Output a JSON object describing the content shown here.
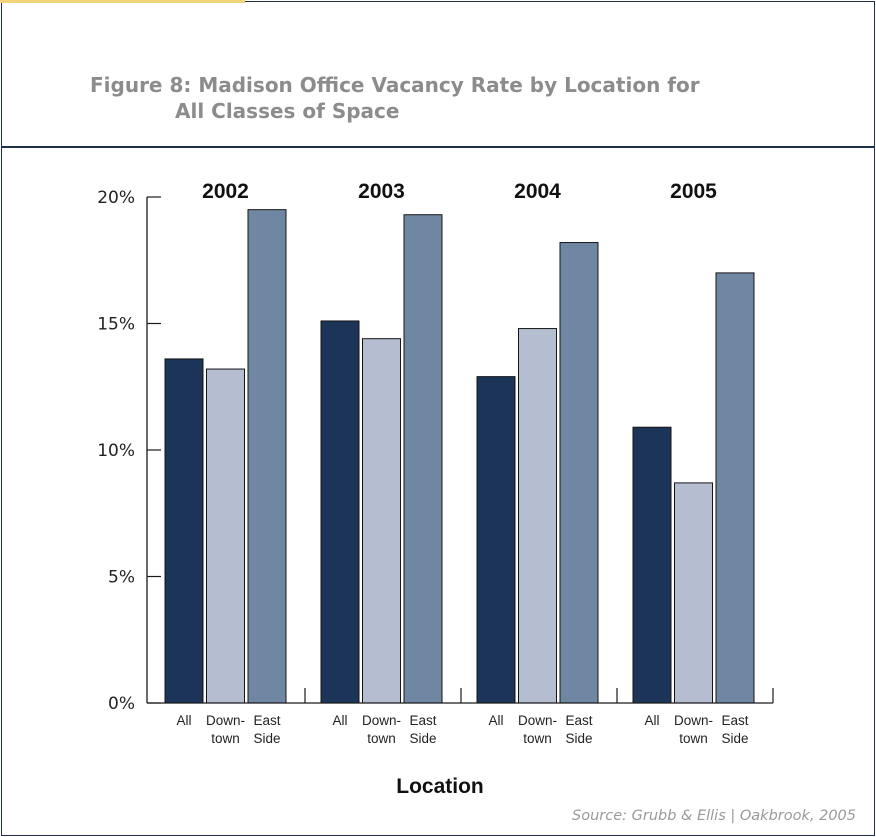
{
  "colors": {
    "frame": "#1f2f4c",
    "accent": "#f2d57a",
    "title_text": "#8c8c8c",
    "source_text": "#9a9a9a",
    "axis": "#1a1a1a",
    "bar_outline": "#151515"
  },
  "chart_data": {
    "type": "bar",
    "title_lines": [
      "Figure 8: Madison Office Vacancy Rate by Location for",
      "All Classes of Space"
    ],
    "xlabel": "Location",
    "ylabel": "",
    "ylim": [
      0,
      20
    ],
    "yticks": [
      0,
      5,
      10,
      15,
      20
    ],
    "ytick_labels": [
      "0%",
      "5%",
      "10%",
      "15%",
      "20%"
    ],
    "grid": false,
    "categories": [
      "2002",
      "2003",
      "2004",
      "2005"
    ],
    "series": [
      {
        "label_lines": [
          "All"
        ],
        "color": "#1c3458",
        "values": [
          13.6,
          15.1,
          12.9,
          10.9
        ]
      },
      {
        "label_lines": [
          "Down-",
          "town"
        ],
        "color": "#b4bed0",
        "values": [
          13.2,
          14.4,
          14.8,
          8.7
        ]
      },
      {
        "label_lines": [
          "East",
          "Side"
        ],
        "color": "#6f87a3",
        "values": [
          19.5,
          19.3,
          18.2,
          17.0
        ]
      }
    ],
    "source": "Source: Grubb & Ellis | Oakbrook, 2005"
  }
}
